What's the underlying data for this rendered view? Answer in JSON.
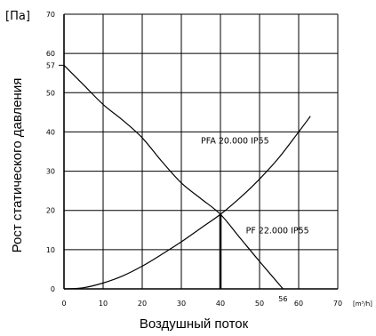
{
  "chart_data": {
    "type": "line",
    "ylabel": "Рост статического давления",
    "xlabel": "Воздушный поток",
    "yunit": "[Па]",
    "xunit": "[m³/h]",
    "xlim": [
      0,
      70
    ],
    "ylim": [
      0,
      70
    ],
    "x_ticks": [
      "0",
      "10",
      "20",
      "30",
      "40",
      "50",
      "60",
      "70"
    ],
    "y_ticks": [
      "0",
      "10",
      "20",
      "30",
      "40",
      "50",
      "60",
      "70"
    ],
    "grid": true,
    "annotations": [
      {
        "text": "57",
        "axis": "y",
        "value": 57
      },
      {
        "text": "56",
        "axis": "x",
        "value": 56
      }
    ],
    "operating_point": {
      "x": 40,
      "y": 19
    },
    "series": [
      {
        "name": "PF 22.000 IP55",
        "x": [
          0,
          5,
          10,
          15,
          20,
          25,
          30,
          35,
          40,
          45,
          50,
          56
        ],
        "y": [
          57,
          52,
          47,
          43,
          38.5,
          32.5,
          27,
          23,
          19,
          13,
          7,
          0
        ]
      },
      {
        "name": "PFA 20.000 IP55",
        "x": [
          0,
          5,
          10,
          15,
          20,
          25,
          30,
          35,
          40,
          45,
          50,
          55,
          60,
          63
        ],
        "y": [
          0,
          0.3,
          1.5,
          3.3,
          5.8,
          8.8,
          12,
          15.5,
          19,
          23.2,
          28,
          33.5,
          40,
          44
        ]
      }
    ]
  }
}
